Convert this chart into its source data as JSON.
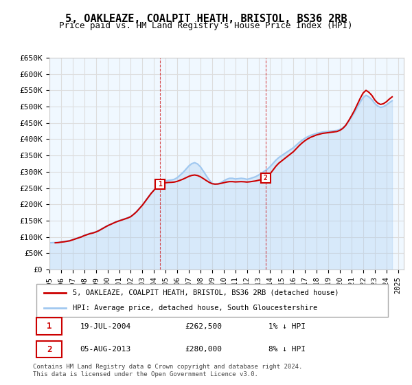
{
  "title": "5, OAKLEAZE, COALPIT HEATH, BRISTOL, BS36 2RB",
  "subtitle": "Price paid vs. HM Land Registry's House Price Index (HPI)",
  "xlabel": "",
  "ylabel": "",
  "ylim": [
    0,
    650000
  ],
  "yticks": [
    0,
    50000,
    100000,
    150000,
    200000,
    250000,
    300000,
    350000,
    400000,
    450000,
    500000,
    550000,
    600000,
    650000
  ],
  "ytick_labels": [
    "£0",
    "£50K",
    "£100K",
    "£150K",
    "£200K",
    "£250K",
    "£300K",
    "£350K",
    "£400K",
    "£450K",
    "£500K",
    "£550K",
    "£600K",
    "£650K"
  ],
  "xlim_start": 1995.0,
  "xlim_end": 2025.5,
  "xtick_years": [
    1995,
    1996,
    1997,
    1998,
    1999,
    2000,
    2001,
    2002,
    2003,
    2004,
    2005,
    2006,
    2007,
    2008,
    2009,
    2010,
    2011,
    2012,
    2013,
    2014,
    2015,
    2016,
    2017,
    2018,
    2019,
    2020,
    2021,
    2022,
    2023,
    2024,
    2025
  ],
  "sale1_x": 2004.54,
  "sale1_y": 262500,
  "sale1_label": "1",
  "sale2_x": 2013.59,
  "sale2_y": 280000,
  "sale2_label": "2",
  "red_line_color": "#cc0000",
  "blue_line_color": "#a0c8f0",
  "marker_box_color": "#cc0000",
  "grid_color": "#dddddd",
  "bg_color": "#f0f8ff",
  "plot_bg_color": "#f0f8ff",
  "legend1_label": "5, OAKLEAZE, COALPIT HEATH, BRISTOL, BS36 2RB (detached house)",
  "legend2_label": "HPI: Average price, detached house, South Gloucestershire",
  "annotation1": "19-JUL-2004          £262,500          1% ↓ HPI",
  "annotation2": "05-AUG-2013          £280,000          8% ↓ HPI",
  "footer": "Contains HM Land Registry data © Crown copyright and database right 2024.\nThis data is licensed under the Open Government Licence v3.0.",
  "hpi_data_x": [
    1995.0,
    1995.25,
    1995.5,
    1995.75,
    1996.0,
    1996.25,
    1996.5,
    1996.75,
    1997.0,
    1997.25,
    1997.5,
    1997.75,
    1998.0,
    1998.25,
    1998.5,
    1998.75,
    1999.0,
    1999.25,
    1999.5,
    1999.75,
    2000.0,
    2000.25,
    2000.5,
    2000.75,
    2001.0,
    2001.25,
    2001.5,
    2001.75,
    2002.0,
    2002.25,
    2002.5,
    2002.75,
    2003.0,
    2003.25,
    2003.5,
    2003.75,
    2004.0,
    2004.25,
    2004.5,
    2004.75,
    2005.0,
    2005.25,
    2005.5,
    2005.75,
    2006.0,
    2006.25,
    2006.5,
    2006.75,
    2007.0,
    2007.25,
    2007.5,
    2007.75,
    2008.0,
    2008.25,
    2008.5,
    2008.75,
    2009.0,
    2009.25,
    2009.5,
    2009.75,
    2010.0,
    2010.25,
    2010.5,
    2010.75,
    2011.0,
    2011.25,
    2011.5,
    2011.75,
    2012.0,
    2012.25,
    2012.5,
    2012.75,
    2013.0,
    2013.25,
    2013.5,
    2013.75,
    2014.0,
    2014.25,
    2014.5,
    2014.75,
    2015.0,
    2015.25,
    2015.5,
    2015.75,
    2016.0,
    2016.25,
    2016.5,
    2016.75,
    2017.0,
    2017.25,
    2017.5,
    2017.75,
    2018.0,
    2018.25,
    2018.5,
    2018.75,
    2019.0,
    2019.25,
    2019.5,
    2019.75,
    2020.0,
    2020.25,
    2020.5,
    2020.75,
    2021.0,
    2021.25,
    2021.5,
    2021.75,
    2022.0,
    2022.25,
    2022.5,
    2022.75,
    2023.0,
    2023.25,
    2023.5,
    2023.75,
    2024.0,
    2024.25,
    2024.5
  ],
  "hpi_data_y": [
    82000,
    82500,
    83000,
    83500,
    85000,
    86000,
    87500,
    89000,
    92000,
    95000,
    98000,
    101000,
    105000,
    108000,
    111000,
    113000,
    116000,
    120000,
    125000,
    130000,
    135000,
    139000,
    143000,
    147000,
    150000,
    153000,
    156000,
    159000,
    163000,
    170000,
    178000,
    188000,
    198000,
    210000,
    222000,
    234000,
    244000,
    254000,
    262000,
    268000,
    272000,
    274000,
    275000,
    277000,
    282000,
    290000,
    298000,
    308000,
    318000,
    325000,
    328000,
    324000,
    315000,
    302000,
    288000,
    275000,
    265000,
    262000,
    263000,
    267000,
    272000,
    277000,
    280000,
    280000,
    278000,
    279000,
    280000,
    279000,
    277000,
    279000,
    282000,
    285000,
    290000,
    295000,
    302000,
    308000,
    316000,
    326000,
    336000,
    344000,
    350000,
    356000,
    362000,
    368000,
    374000,
    382000,
    390000,
    397000,
    403000,
    408000,
    412000,
    415000,
    418000,
    420000,
    422000,
    423000,
    424000,
    425000,
    426000,
    427000,
    430000,
    435000,
    443000,
    455000,
    468000,
    482000,
    498000,
    514000,
    528000,
    535000,
    530000,
    522000,
    510000,
    502000,
    498000,
    500000,
    505000,
    512000,
    518000
  ],
  "price_paid_data_x": [
    1995.5,
    2004.54,
    2013.59
  ],
  "price_paid_data_y": [
    82000,
    262500,
    280000
  ]
}
